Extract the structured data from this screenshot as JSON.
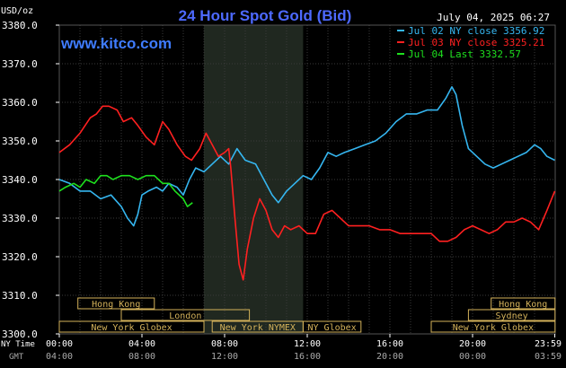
{
  "chart_data": {
    "type": "line",
    "title": "24 Hour Spot Gold (Bid)",
    "site": "www.kitco.com",
    "date_label": "July 04, 2025 06:27",
    "ylabel": "USD/oz",
    "ylim": [
      3300,
      3380
    ],
    "yticks": [
      "3380.0",
      "3370.0",
      "3360.0",
      "3350.0",
      "3340.0",
      "3330.0",
      "3320.0",
      "3310.0",
      "3300.0"
    ],
    "xlim_hours": [
      0,
      24
    ],
    "x_ticks_ny": [
      "00:00",
      "04:00",
      "08:00",
      "12:00",
      "16:00",
      "20:00",
      "23:59"
    ],
    "x_ticks_gmt": [
      "04:00",
      "08:00",
      "12:00",
      "16:00",
      "20:00",
      "00:00",
      "03:59"
    ],
    "x_ticks_hours": [
      0,
      4,
      8,
      12,
      16,
      20,
      23.98
    ],
    "axis_row_ny": "NY Time",
    "axis_row_gmt": "GMT",
    "grid": true,
    "legend_position": "top-right",
    "highlight_hours": [
      7.0,
      11.8
    ],
    "colors": {
      "background": "#000000",
      "grid": "#3a3a3a",
      "axis_text": "#ffffff",
      "title": "#4d69ff",
      "site": "#3f7cff",
      "session_box": "#d4b25a",
      "highlight": "#202820"
    },
    "legend": [
      {
        "label": "Jul 02 NY close 3356.92",
        "color": "#35b6f0"
      },
      {
        "label": "Jul 03 NY close 3325.21",
        "color": "#ff2020"
      },
      {
        "label": "Jul 04 Last 3332.57",
        "color": "#1ee01e"
      }
    ],
    "sessions": [
      {
        "label": "Hong Kong",
        "start": 0.9,
        "end": 4.6,
        "row": 0
      },
      {
        "label": "London",
        "start": 3.0,
        "end": 9.2,
        "row": 1
      },
      {
        "label": "New York Globex",
        "start": 0.0,
        "end": 7.0,
        "row": 2
      },
      {
        "label": "New York NYMEX",
        "start": 7.4,
        "end": 11.8,
        "row": 2
      },
      {
        "label": "NY Globex",
        "start": 11.8,
        "end": 14.6,
        "row": 2
      },
      {
        "label": "Hong Kong",
        "start": 20.9,
        "end": 23.99,
        "row": 0
      },
      {
        "label": "Sydney",
        "start": 19.8,
        "end": 23.99,
        "row": 1
      },
      {
        "label": "New York Globex",
        "start": 18.0,
        "end": 23.99,
        "row": 2
      }
    ],
    "series": [
      {
        "name": "Jul 02 NY close 3356.92",
        "color": "#35b6f0",
        "points": [
          [
            0,
            3340
          ],
          [
            0.5,
            3339
          ],
          [
            1,
            3337
          ],
          [
            1.5,
            3337
          ],
          [
            2,
            3335
          ],
          [
            2.5,
            3336
          ],
          [
            3,
            3333
          ],
          [
            3.3,
            3330
          ],
          [
            3.6,
            3328
          ],
          [
            3.8,
            3331
          ],
          [
            4,
            3336
          ],
          [
            4.3,
            3337
          ],
          [
            4.7,
            3338
          ],
          [
            5,
            3337
          ],
          [
            5.3,
            3339
          ],
          [
            5.7,
            3338
          ],
          [
            6,
            3336
          ],
          [
            6.3,
            3340
          ],
          [
            6.6,
            3343
          ],
          [
            7,
            3342
          ],
          [
            7.4,
            3344
          ],
          [
            7.8,
            3346
          ],
          [
            8.2,
            3344
          ],
          [
            8.6,
            3348
          ],
          [
            9,
            3345
          ],
          [
            9.5,
            3344
          ],
          [
            9.9,
            3340
          ],
          [
            10.3,
            3336
          ],
          [
            10.6,
            3334
          ],
          [
            11,
            3337
          ],
          [
            11.4,
            3339
          ],
          [
            11.8,
            3341
          ],
          [
            12.2,
            3340
          ],
          [
            12.6,
            3343
          ],
          [
            13,
            3347
          ],
          [
            13.4,
            3346
          ],
          [
            13.8,
            3347
          ],
          [
            14.3,
            3348
          ],
          [
            14.8,
            3349
          ],
          [
            15.3,
            3350
          ],
          [
            15.8,
            3352
          ],
          [
            16.3,
            3355
          ],
          [
            16.8,
            3357
          ],
          [
            17.3,
            3357
          ],
          [
            17.8,
            3358
          ],
          [
            18.3,
            3358
          ],
          [
            18.7,
            3361
          ],
          [
            19.0,
            3364
          ],
          [
            19.2,
            3362
          ],
          [
            19.5,
            3354
          ],
          [
            19.8,
            3348
          ],
          [
            20.2,
            3346
          ],
          [
            20.6,
            3344
          ],
          [
            21,
            3343
          ],
          [
            21.4,
            3344
          ],
          [
            21.8,
            3345
          ],
          [
            22.2,
            3346
          ],
          [
            22.6,
            3347
          ],
          [
            23,
            3349
          ],
          [
            23.3,
            3348
          ],
          [
            23.6,
            3346
          ],
          [
            23.98,
            3345
          ]
        ]
      },
      {
        "name": "Jul 03 NY close 3325.21",
        "color": "#ff2020",
        "points": [
          [
            0,
            3347
          ],
          [
            0.5,
            3349
          ],
          [
            1,
            3352
          ],
          [
            1.5,
            3356
          ],
          [
            1.8,
            3357
          ],
          [
            2.1,
            3359
          ],
          [
            2.4,
            3359
          ],
          [
            2.8,
            3358
          ],
          [
            3.1,
            3355
          ],
          [
            3.5,
            3356
          ],
          [
            3.8,
            3354
          ],
          [
            4.2,
            3351
          ],
          [
            4.6,
            3349
          ],
          [
            5,
            3355
          ],
          [
            5.3,
            3353
          ],
          [
            5.7,
            3349
          ],
          [
            6.1,
            3346
          ],
          [
            6.4,
            3345
          ],
          [
            6.8,
            3348
          ],
          [
            7.1,
            3352
          ],
          [
            7.4,
            3349
          ],
          [
            7.7,
            3346
          ],
          [
            8,
            3347
          ],
          [
            8.2,
            3348
          ],
          [
            8.3,
            3343
          ],
          [
            8.5,
            3330
          ],
          [
            8.7,
            3318
          ],
          [
            8.9,
            3314
          ],
          [
            9.1,
            3322
          ],
          [
            9.4,
            3330
          ],
          [
            9.7,
            3335
          ],
          [
            10,
            3332
          ],
          [
            10.3,
            3327
          ],
          [
            10.6,
            3325
          ],
          [
            10.9,
            3328
          ],
          [
            11.2,
            3327
          ],
          [
            11.6,
            3328
          ],
          [
            12,
            3326
          ],
          [
            12.4,
            3326
          ],
          [
            12.8,
            3331
          ],
          [
            13.2,
            3332
          ],
          [
            13.6,
            3330
          ],
          [
            14,
            3328
          ],
          [
            14.5,
            3328
          ],
          [
            15,
            3328
          ],
          [
            15.5,
            3327
          ],
          [
            16,
            3327
          ],
          [
            16.5,
            3326
          ],
          [
            17,
            3326
          ],
          [
            17.5,
            3326
          ],
          [
            18,
            3326
          ],
          [
            18.4,
            3324
          ],
          [
            18.8,
            3324
          ],
          [
            19.2,
            3325
          ],
          [
            19.6,
            3327
          ],
          [
            20,
            3328
          ],
          [
            20.4,
            3327
          ],
          [
            20.8,
            3326
          ],
          [
            21.2,
            3327
          ],
          [
            21.6,
            3329
          ],
          [
            22,
            3329
          ],
          [
            22.4,
            3330
          ],
          [
            22.8,
            3329
          ],
          [
            23.2,
            3327
          ],
          [
            23.6,
            3332
          ],
          [
            23.98,
            3337
          ]
        ]
      },
      {
        "name": "Jul 04 Last 3332.57",
        "color": "#1ee01e",
        "points": [
          [
            0,
            3337
          ],
          [
            0.3,
            3338
          ],
          [
            0.7,
            3339
          ],
          [
            1,
            3338
          ],
          [
            1.3,
            3340
          ],
          [
            1.7,
            3339
          ],
          [
            2,
            3341
          ],
          [
            2.3,
            3341
          ],
          [
            2.6,
            3340
          ],
          [
            3,
            3341
          ],
          [
            3.4,
            3341
          ],
          [
            3.8,
            3340
          ],
          [
            4.2,
            3341
          ],
          [
            4.6,
            3341
          ],
          [
            5,
            3339
          ],
          [
            5.3,
            3339
          ],
          [
            5.6,
            3337
          ],
          [
            6,
            3335
          ],
          [
            6.2,
            3333
          ],
          [
            6.45,
            3334
          ]
        ]
      }
    ]
  }
}
